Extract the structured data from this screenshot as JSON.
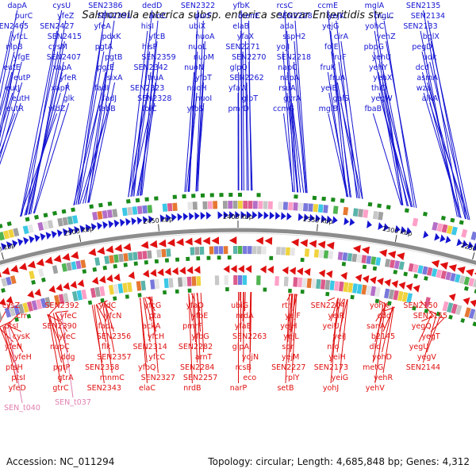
{
  "title": "Salmonella enterica subsp. enterica serovar Enteritidis str....",
  "footer": {
    "accession": "Accession: NC_011294",
    "summary": "Topology: circular; Length: 4,685,848 bp; Genes: 4,312"
  },
  "colors": {
    "forward": "#1414d2",
    "reverse": "#e01010",
    "rna": "#e080b0",
    "backbone": "#8c8c8c",
    "green_marker": "#1a8a1a"
  },
  "ticks": [
    "2550 kbp",
    "2500 kbp",
    "2450 kbp",
    "2400 kbp",
    "2350 kbp",
    "2300 kbp",
    "2250 kbp"
  ],
  "forward_genes": [
    "dapA",
    "purC",
    "SEN2465",
    "yfcL",
    "nlpB",
    "yfgE",
    "eutE",
    "eutP",
    "eutJ",
    "eutH",
    "eutR",
    "cysU",
    "yfeZ",
    "SEN2427",
    "SEN2415",
    "cysM",
    "SEN2407",
    "xapA",
    "yfeR",
    "xapR",
    "glk",
    "yfdZ",
    "SEN2386",
    "SEN2391",
    "yfeA",
    "pdxK",
    "pgtA",
    "pgtB",
    "pgtE",
    "sixA",
    "fadI",
    "fadJ",
    "fabB",
    "dedD",
    "aroC",
    "hisI",
    "yfcB",
    "hisP",
    "SEN2359",
    "SEN2342",
    "truA",
    "SEN2323",
    "SEN2328",
    "folC",
    "SEN2322",
    "purF",
    "ubiX",
    "nuoA",
    "nuoL",
    "nuoM",
    "nuoN",
    "yfbT",
    "nuoH",
    "nuoI",
    "yfbS",
    "yfbK",
    "menE",
    "elaB",
    "yfaX",
    "SEN2271",
    "SEN2270",
    "glpQ",
    "SEN2262",
    "yfaW",
    "glpT",
    "pmrD",
    "rcsC",
    "SEN2228",
    "ada",
    "sspH2",
    "yojI",
    "SEN2218",
    "napC",
    "napA",
    "rsuA",
    "gyrA",
    "ccmG",
    "ccmE",
    "yejK",
    "yejG",
    "cirA",
    "folE",
    "fruF",
    "fruK",
    "fruA",
    "yeiB",
    "galS",
    "mglB",
    "mglA",
    "mglC",
    "yohC",
    "yehZ",
    "pbpG",
    "yehU",
    "yehY",
    "yehX",
    "thiD",
    "yegW",
    "fbaB",
    "SEN2135",
    "SEN2134",
    "SEN2133",
    "bglX",
    "pegD",
    "udk",
    "dcd",
    "asmA",
    "wza",
    "alkA"
  ],
  "reverse_genes": [
    "cysZ",
    "crr",
    "ptsI",
    "cysK",
    "yfeN",
    "yfeH",
    "ptsH",
    "ptsI",
    "yfeD",
    "SEN2392",
    "yfeC",
    "SEN2390",
    "yfeC",
    "nupC",
    "ddg",
    "pgtP",
    "gtrA",
    "gtrC",
    "yfdC",
    "yfcN",
    "fadL",
    "SEN2356",
    "flk",
    "SEN2357",
    "SEN2358",
    "mnmC",
    "SEN2343",
    "yfcG",
    "pta",
    "ackA",
    "yfcH",
    "SEN2314",
    "yfcC",
    "yfbQ",
    "SEN2327",
    "elaC",
    "yfaO",
    "yfbE",
    "pmrF",
    "yfbG",
    "SEN2282",
    "arnT",
    "SEN2284",
    "SEN2257",
    "nrdB",
    "ubiG",
    "nrdA",
    "yfaE",
    "SEN2263",
    "glpA",
    "yojN",
    "rcsB",
    "eco",
    "narP",
    "rtn",
    "yejF",
    "yejH",
    "yejL",
    "spr",
    "yejM",
    "SEN2227",
    "rplY",
    "setB",
    "SEN2204",
    "yeiR",
    "yeiU",
    "yeiJ",
    "nfo",
    "yeiH",
    "SEN2173",
    "yeiG",
    "yohJ",
    "yohK",
    "cdd",
    "sanA",
    "b2145",
    "dld",
    "yohD",
    "metG",
    "yehR",
    "yehV",
    "SEN2150",
    "SEN2155",
    "yegQ",
    "yegT",
    "yegU",
    "yegV",
    "SEN2144"
  ],
  "rna_genes": [
    "SEN_t040",
    "SEN_t037"
  ]
}
